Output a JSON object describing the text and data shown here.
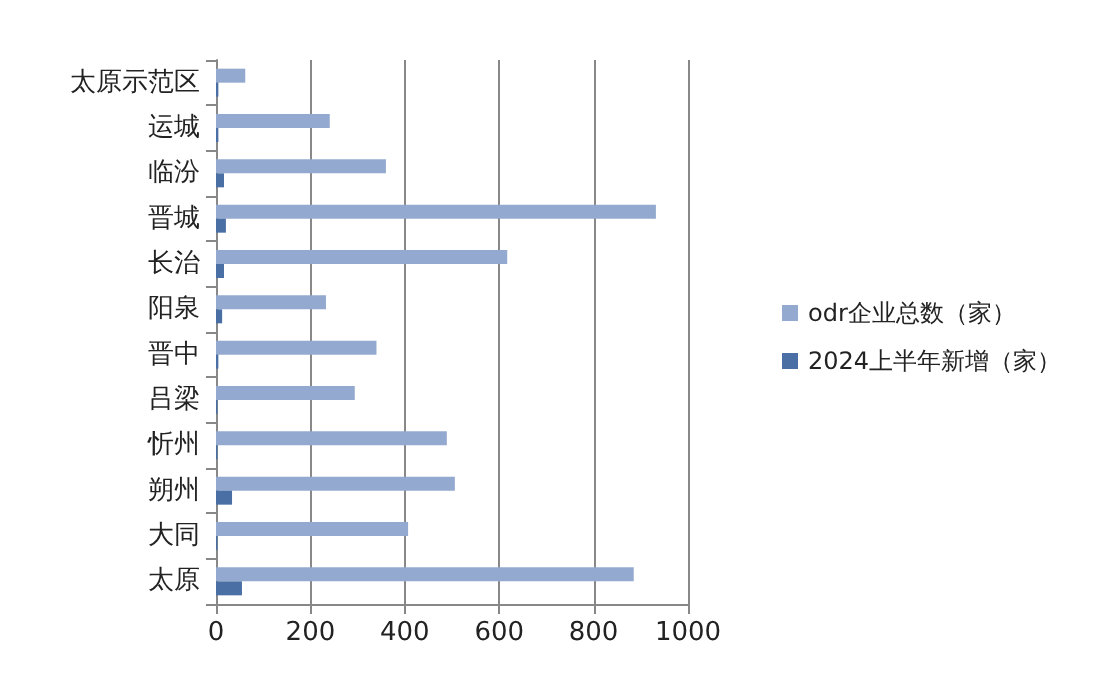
{
  "chart_data": {
    "type": "bar",
    "orientation": "horizontal",
    "categories": [
      "太原示范区",
      "运城",
      "临汾",
      "晋城",
      "长治",
      "阳泉",
      "晋中",
      "吕梁",
      "忻州",
      "朔州",
      "大同",
      "太原"
    ],
    "series": [
      {
        "name": "odr企业总数（家）",
        "color": "#93a9cf",
        "values": [
          62,
          241,
          360,
          932,
          617,
          233,
          340,
          294,
          489,
          506,
          407,
          885
        ]
      },
      {
        "name": "2024上半年新增（家）",
        "color": "#4a6fa5",
        "values": [
          5,
          5,
          17,
          21,
          17,
          13,
          5,
          3,
          3,
          34,
          3,
          55
        ]
      }
    ],
    "xlim": [
      0,
      1000
    ],
    "xticks": [
      0,
      200,
      400,
      600,
      800,
      1000
    ],
    "grid": "x",
    "legend": "right"
  }
}
